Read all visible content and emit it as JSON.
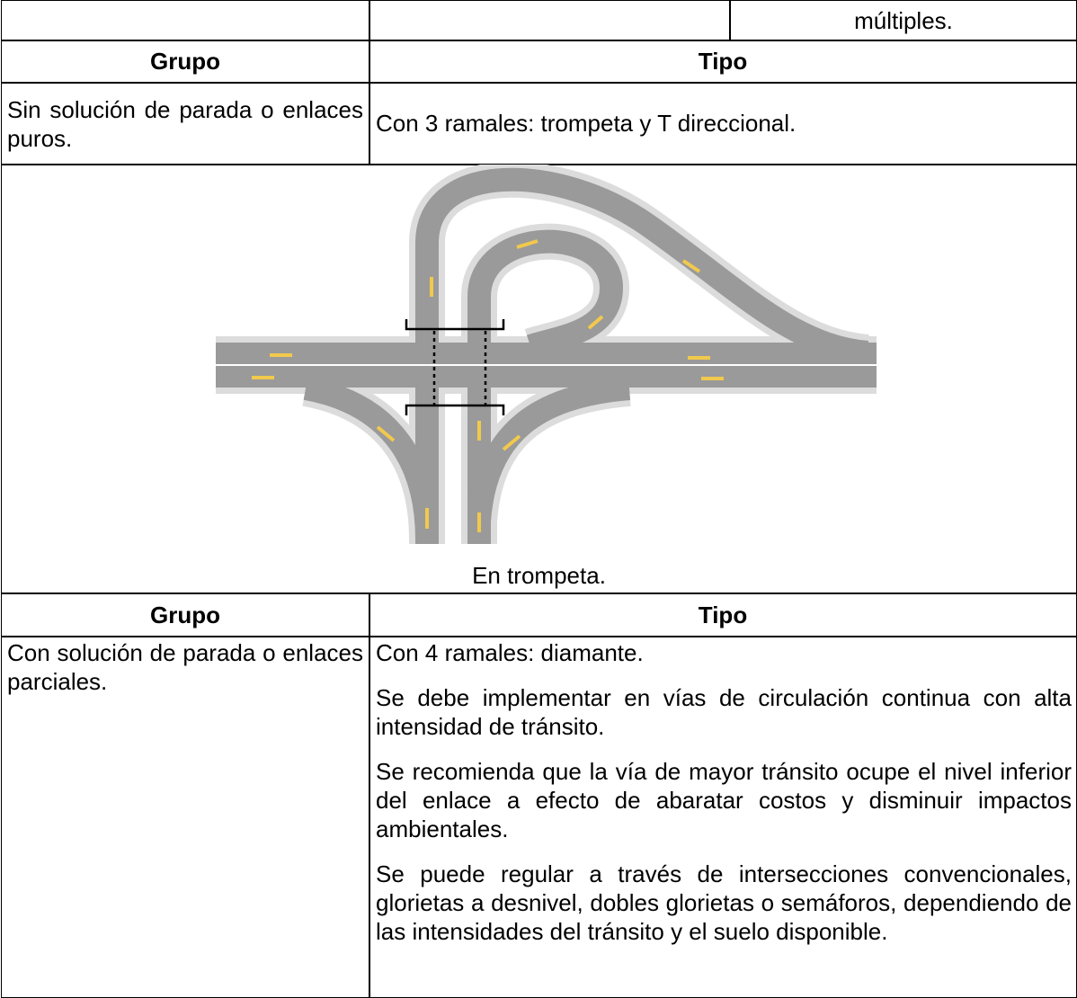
{
  "continuation": {
    "text": "múltiples."
  },
  "section1": {
    "header": {
      "group": "Grupo",
      "type": "Tipo"
    },
    "group": "Sin solución de parada o enlaces puros.",
    "type": "Con 3 ramales: trompeta y T direccional.",
    "figure_caption": "En trompeta."
  },
  "section2": {
    "header": {
      "group": "Grupo",
      "type": "Tipo"
    },
    "group": "Con solución de parada o enlaces parciales.",
    "paragraphs": [
      "Con 4 ramales: diamante.",
      "Se debe implementar en vías de circulación continua con alta intensidad de tránsito.",
      "Se recomienda que la vía de mayor tránsito ocupe el nivel inferior del enlace a efecto de abaratar costos y disminuir impactos ambientales.",
      "Se puede regular a través de intersecciones convencionales, glorietas a desnivel, dobles glorietas o semáforos, dependiendo de las intensidades del tránsito y el suelo disponible."
    ]
  }
}
